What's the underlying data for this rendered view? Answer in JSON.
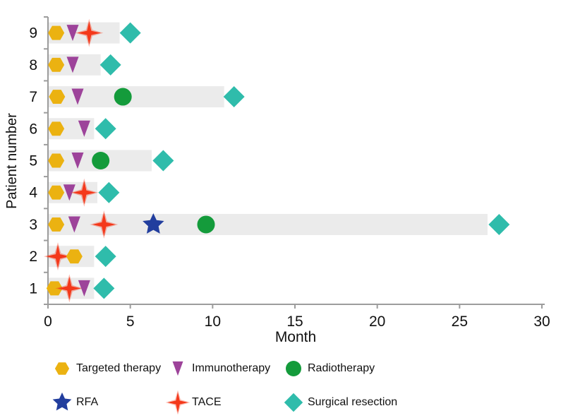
{
  "chart_data": {
    "type": "swimmer-bar",
    "title": "",
    "xlabel": "Month",
    "ylabel": "Patient number",
    "xlim": [
      0,
      30
    ],
    "xticks": [
      0,
      5,
      10,
      15,
      20,
      25,
      30
    ],
    "grid": false,
    "legend_position": "bottom",
    "bar_color": "#ebebeb",
    "axis_color": "#9c9c9c",
    "text_color": "#111111",
    "marker_types": {
      "targeted": {
        "label": "Targeted therapy",
        "shape": "hexagon",
        "color": "#ebb211"
      },
      "immuno": {
        "label": "Immunotherapy",
        "shape": "triangle-down",
        "color": "#9d439a"
      },
      "radio": {
        "label": "Radiotherapy",
        "shape": "circle",
        "color": "#149b3b"
      },
      "rfa": {
        "label": "RFA",
        "shape": "star5",
        "color": "#223e9e"
      },
      "tace": {
        "label": "TACE",
        "shape": "star4",
        "color": "#f4381a"
      },
      "surgery": {
        "label": "Surgical resection",
        "shape": "diamond",
        "color": "#2fbcab"
      }
    },
    "patients": [
      {
        "patient": 1,
        "bar_end": 2.8,
        "events": [
          {
            "type": "targeted",
            "month": 0.4
          },
          {
            "type": "tace",
            "month": 1.3
          },
          {
            "type": "immuno",
            "month": 2.2
          },
          {
            "type": "surgery",
            "month": 3.4
          }
        ]
      },
      {
        "patient": 2,
        "bar_end": 2.8,
        "events": [
          {
            "type": "tace",
            "month": 0.6
          },
          {
            "type": "targeted",
            "month": 1.6
          },
          {
            "type": "surgery",
            "month": 3.5
          }
        ]
      },
      {
        "patient": 3,
        "bar_end": 26.7,
        "events": [
          {
            "type": "targeted",
            "month": 0.5
          },
          {
            "type": "immuno",
            "month": 1.6
          },
          {
            "type": "tace",
            "month": 3.4
          },
          {
            "type": "rfa",
            "month": 6.4
          },
          {
            "type": "radio",
            "month": 9.6
          },
          {
            "type": "surgery",
            "month": 27.4
          }
        ]
      },
      {
        "patient": 4,
        "bar_end": 3.0,
        "events": [
          {
            "type": "targeted",
            "month": 0.5
          },
          {
            "type": "immuno",
            "month": 1.3
          },
          {
            "type": "tace",
            "month": 2.2
          },
          {
            "type": "surgery",
            "month": 3.7
          }
        ]
      },
      {
        "patient": 5,
        "bar_end": 6.3,
        "events": [
          {
            "type": "targeted",
            "month": 0.5
          },
          {
            "type": "immuno",
            "month": 1.8
          },
          {
            "type": "radio",
            "month": 3.2
          },
          {
            "type": "surgery",
            "month": 7.0
          }
        ]
      },
      {
        "patient": 6,
        "bar_end": 2.8,
        "events": [
          {
            "type": "targeted",
            "month": 0.5
          },
          {
            "type": "immuno",
            "month": 2.2
          },
          {
            "type": "surgery",
            "month": 3.5
          }
        ]
      },
      {
        "patient": 7,
        "bar_end": 10.7,
        "events": [
          {
            "type": "targeted",
            "month": 0.55
          },
          {
            "type": "immuno",
            "month": 1.8
          },
          {
            "type": "radio",
            "month": 4.55
          },
          {
            "type": "surgery",
            "month": 11.3
          }
        ]
      },
      {
        "patient": 8,
        "bar_end": 3.2,
        "events": [
          {
            "type": "targeted",
            "month": 0.5
          },
          {
            "type": "immuno",
            "month": 1.5
          },
          {
            "type": "surgery",
            "month": 3.8
          }
        ]
      },
      {
        "patient": 9,
        "bar_end": 4.35,
        "events": [
          {
            "type": "targeted",
            "month": 0.5
          },
          {
            "type": "immuno",
            "month": 1.5
          },
          {
            "type": "tace",
            "month": 2.5
          },
          {
            "type": "surgery",
            "month": 5.0
          }
        ]
      }
    ],
    "legend": {
      "rows": [
        [
          "targeted",
          "immuno",
          "radio"
        ],
        [
          "rfa",
          "tace",
          "surgery"
        ]
      ]
    }
  }
}
